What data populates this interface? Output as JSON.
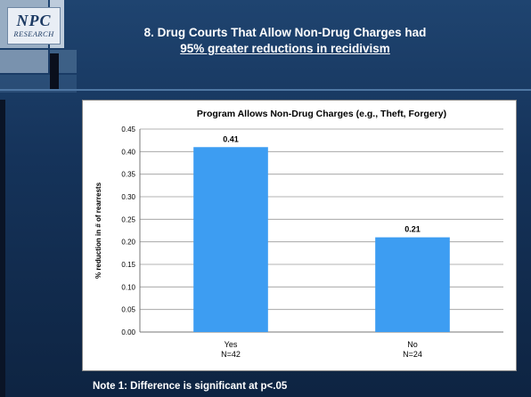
{
  "slide": {
    "logo_text": "NPC",
    "logo_sub": "RESEARCH",
    "title_line1": "8. Drug Courts That Allow Non-Drug Charges had",
    "title_line2": "95% greater reductions in recidivism",
    "note": "Note 1: Difference is significant at p<.05"
  },
  "chart_data": {
    "type": "bar",
    "title": "Program Allows Non-Drug Charges (e.g., Theft, Forgery)",
    "ylabel": "% reduction in # of rearrests",
    "xlabel": "",
    "categories": [
      {
        "line1": "Yes",
        "line2": "N=42"
      },
      {
        "line1": "No",
        "line2": "N=24"
      }
    ],
    "values": [
      0.41,
      0.21
    ],
    "data_labels": [
      "0.41",
      "0.21"
    ],
    "ylim": [
      0,
      0.45
    ],
    "yticks": [
      "0.00",
      "0.05",
      "0.10",
      "0.15",
      "0.20",
      "0.25",
      "0.30",
      "0.35",
      "0.40",
      "0.45"
    ],
    "grid": true,
    "legend": "none",
    "bar_color": "#3d9df2"
  }
}
